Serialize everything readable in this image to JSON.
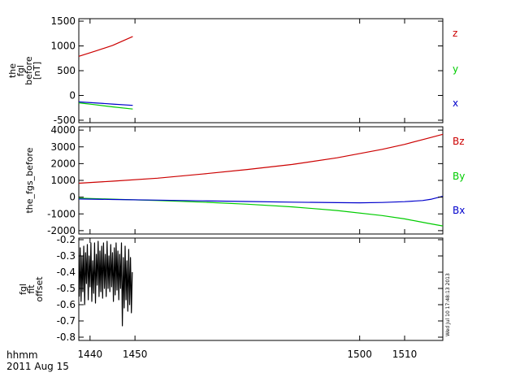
{
  "footer": {
    "time_label": "hhmm",
    "date_label": "2011  Aug  15"
  },
  "timestamp": "Wed Jul 10 17:48:13 2013",
  "colors": {
    "x": "#0000cc",
    "y": "#00cc00",
    "z": "#cc0000",
    "axis": "#000000"
  },
  "chart_data": [
    {
      "type": "line",
      "ylabel_lines": [
        "the",
        "fgl",
        "before",
        "[nT]"
      ],
      "xlim": [
        1437.5,
        1518.5
      ],
      "ylim": [
        -550,
        1550
      ],
      "yticks": [
        -500,
        0,
        500,
        1000,
        1500
      ],
      "yticklabels": [
        "-500",
        "0",
        "500",
        "1000",
        "1500"
      ],
      "legend": [
        "z",
        "y",
        "x"
      ],
      "series": [
        {
          "name": "z",
          "color": "#cc0000",
          "x": [
            1437.5,
            1441,
            1445,
            1449.5
          ],
          "y": [
            790,
            890,
            1010,
            1190
          ]
        },
        {
          "name": "y",
          "color": "#00cc00",
          "x": [
            1437.5,
            1441,
            1445,
            1449.5
          ],
          "y": [
            -150,
            -185,
            -230,
            -275
          ]
        },
        {
          "name": "x",
          "color": "#0000cc",
          "x": [
            1437.5,
            1441,
            1445,
            1449.5
          ],
          "y": [
            -130,
            -150,
            -175,
            -200
          ]
        }
      ]
    },
    {
      "type": "line",
      "ylabel_lines": [
        "the_fgs_before"
      ],
      "xlim": [
        1437.5,
        1518.5
      ],
      "ylim": [
        -2200,
        4200
      ],
      "yticks": [
        -2000,
        -1000,
        0,
        1000,
        2000,
        3000,
        4000
      ],
      "yticklabels": [
        "-2000",
        "-1000",
        "0",
        "1000",
        "2000",
        "3000",
        "4000"
      ],
      "legend": [
        "Bz",
        "By",
        "Bx"
      ],
      "series": [
        {
          "name": "Bz",
          "color": "#cc0000",
          "x": [
            1437.5,
            1445,
            1455,
            1465,
            1475,
            1485,
            1495,
            1505,
            1510,
            1515,
            1518.5
          ],
          "y": [
            830,
            950,
            1130,
            1380,
            1650,
            1950,
            2350,
            2850,
            3150,
            3500,
            3750
          ]
        },
        {
          "name": "By",
          "color": "#00cc00",
          "x": [
            1437.5,
            1445,
            1455,
            1465,
            1475,
            1485,
            1495,
            1505,
            1510,
            1515,
            1518.5
          ],
          "y": [
            -60,
            -120,
            -200,
            -300,
            -420,
            -580,
            -800,
            -1100,
            -1300,
            -1550,
            -1720
          ]
        },
        {
          "name": "Bx",
          "color": "#0000cc",
          "x": [
            1437.5,
            1445,
            1455,
            1465,
            1475,
            1485,
            1495,
            1500,
            1505,
            1510,
            1514,
            1516,
            1518.5
          ],
          "y": [
            -110,
            -140,
            -180,
            -220,
            -260,
            -300,
            -330,
            -340,
            -320,
            -270,
            -200,
            -120,
            50
          ]
        }
      ]
    },
    {
      "type": "line",
      "ylabel_lines": [
        "fgl",
        "fit",
        "offset"
      ],
      "xlim": [
        1437.5,
        1518.5
      ],
      "ylim": [
        -0.82,
        -0.19
      ],
      "yticks": [
        -0.8,
        -0.7,
        -0.6,
        -0.5,
        -0.4,
        -0.3,
        -0.2
      ],
      "yticklabels": [
        "-0.8",
        "-0.7",
        "-0.6",
        "-0.5",
        "-0.4",
        "-0.3",
        "-0.2"
      ],
      "xticks": [
        1440,
        1450,
        1500,
        1510
      ],
      "xticklabels": [
        "1440",
        "1450",
        "1500",
        "1510"
      ],
      "series": [
        {
          "name": "",
          "color": "#000000",
          "x": [
            1437.6,
            1437.8,
            1438.0,
            1438.2,
            1438.4,
            1438.6,
            1438.8,
            1439.0,
            1439.2,
            1439.4,
            1439.6,
            1439.8,
            1440.0,
            1440.2,
            1440.4,
            1440.6,
            1440.8,
            1441.0,
            1441.2,
            1441.4,
            1441.6,
            1441.8,
            1442.0,
            1442.2,
            1442.4,
            1442.6,
            1442.8,
            1443.0,
            1443.2,
            1443.4,
            1443.6,
            1443.8,
            1444.0,
            1444.2,
            1444.4,
            1444.6,
            1444.8,
            1445.0,
            1445.2,
            1445.4,
            1445.6,
            1445.8,
            1446.0,
            1446.2,
            1446.4,
            1446.6,
            1446.8,
            1447.0,
            1447.2,
            1447.4,
            1447.6,
            1447.8,
            1448.0,
            1448.2,
            1448.4,
            1448.6,
            1448.8,
            1449.0,
            1449.2,
            1449.4
          ],
          "y": [
            -0.55,
            -0.25,
            -0.58,
            -0.3,
            -0.52,
            -0.24,
            -0.6,
            -0.28,
            -0.47,
            -0.23,
            -0.57,
            -0.3,
            -0.49,
            -0.22,
            -0.58,
            -0.33,
            -0.53,
            -0.22,
            -0.59,
            -0.29,
            -0.48,
            -0.21,
            -0.55,
            -0.27,
            -0.52,
            -0.24,
            -0.56,
            -0.22,
            -0.5,
            -0.29,
            -0.55,
            -0.21,
            -0.5,
            -0.3,
            -0.52,
            -0.23,
            -0.49,
            -0.28,
            -0.58,
            -0.25,
            -0.54,
            -0.22,
            -0.51,
            -0.27,
            -0.57,
            -0.29,
            -0.5,
            -0.22,
            -0.73,
            -0.31,
            -0.62,
            -0.24,
            -0.57,
            -0.33,
            -0.64,
            -0.26,
            -0.6,
            -0.31,
            -0.65,
            -0.4
          ]
        }
      ]
    }
  ]
}
